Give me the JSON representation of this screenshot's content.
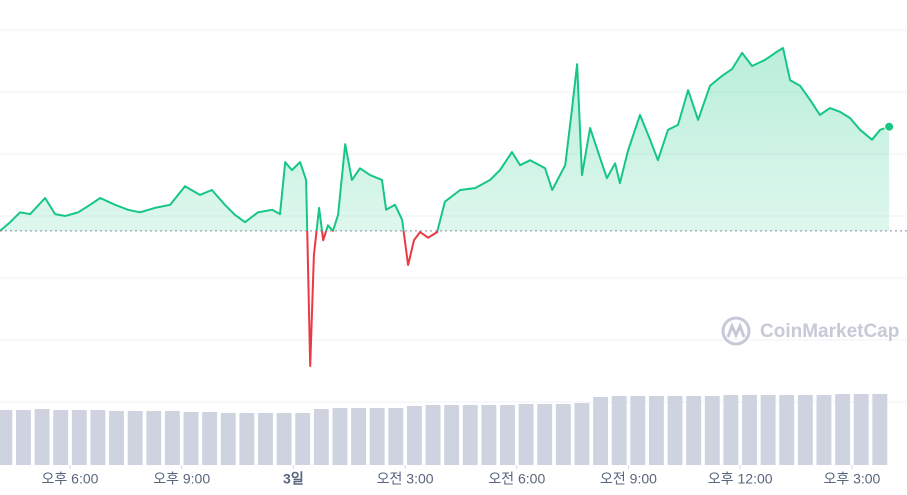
{
  "chart_data": {
    "type": "line",
    "x": [
      16.12,
      16.39,
      16.66,
      16.93,
      17.33,
      17.6,
      17.87,
      18.22,
      18.54,
      18.81,
      19.21,
      19.56,
      19.88,
      20.28,
      20.69,
      21.09,
      21.49,
      21.81,
      22.16,
      22.43,
      22.7,
      23.05,
      23.43,
      23.64,
      23.78,
      23.96,
      24.18,
      24.34,
      24.45,
      24.55,
      24.69,
      24.8,
      24.93,
      25.06,
      25.2,
      25.39,
      25.57,
      25.79,
      26.06,
      26.38,
      26.49,
      26.73,
      26.92,
      27.08,
      27.24,
      27.4,
      27.62,
      27.86,
      28.07,
      28.48,
      28.88,
      29.28,
      29.55,
      29.87,
      30.09,
      30.36,
      30.76,
      30.95,
      31.3,
      31.48,
      31.62,
      31.75,
      31.97,
      32.24,
      32.42,
      32.64,
      32.77,
      32.99,
      33.31,
      33.58,
      33.79,
      34.06,
      34.33,
      34.6,
      34.87,
      35.19,
      35.51,
      35.78,
      36.05,
      36.32,
      36.67,
      36.94,
      37.15,
      37.34,
      37.61,
      37.88,
      38.14,
      38.41,
      38.68,
      38.95,
      39.22,
      39.54,
      39.76,
      40.0
    ],
    "series": [
      {
        "values": [
          2.76,
          2.9,
          3.06,
          3.03,
          3.29,
          3.03,
          3.0,
          3.06,
          3.18,
          3.29,
          3.18,
          3.1,
          3.06,
          3.13,
          3.18,
          3.48,
          3.34,
          3.42,
          3.18,
          3.02,
          2.9,
          3.06,
          3.1,
          3.03,
          3.87,
          3.74,
          3.87,
          3.58,
          0.58,
          2.37,
          3.13,
          2.61,
          2.85,
          2.76,
          3.02,
          4.16,
          3.58,
          3.77,
          3.66,
          3.58,
          3.1,
          3.18,
          2.94,
          2.21,
          2.61,
          2.74,
          2.65,
          2.74,
          3.23,
          3.42,
          3.45,
          3.58,
          3.74,
          4.03,
          3.82,
          3.9,
          3.77,
          3.42,
          3.82,
          4.71,
          5.45,
          3.66,
          4.42,
          3.93,
          3.61,
          3.85,
          3.53,
          4.06,
          4.63,
          4.23,
          3.9,
          4.39,
          4.47,
          5.03,
          4.55,
          5.1,
          5.26,
          5.37,
          5.63,
          5.42,
          5.52,
          5.63,
          5.71,
          5.19,
          5.1,
          4.87,
          4.63,
          4.74,
          4.68,
          4.58,
          4.39,
          4.23,
          4.39,
          4.44
        ],
        "color": "#16c784",
        "down_color": "#ea3943"
      }
    ],
    "reference": 2.76,
    "xlim": [
      16.12,
      40.48
    ],
    "ylim": [
      0,
      6
    ],
    "xticks": [
      {
        "value": 18,
        "label": "오후 6:00"
      },
      {
        "value": 21,
        "label": "오후 9:00"
      },
      {
        "value": 24,
        "label": "3일"
      },
      {
        "value": 27,
        "label": "오전 3:00"
      },
      {
        "value": 30,
        "label": "오전 6:00"
      },
      {
        "value": 33,
        "label": "오전 9:00"
      },
      {
        "value": 36,
        "label": "오후 12:00"
      },
      {
        "value": 39,
        "label": "오후 3:00"
      }
    ],
    "volume": {
      "color": "#cfd3e0",
      "vlim": [
        0,
        80
      ],
      "x": [
        16.25,
        16.75,
        17.25,
        17.75,
        18.25,
        18.75,
        19.25,
        19.75,
        20.25,
        20.75,
        21.25,
        21.75,
        22.25,
        22.75,
        23.25,
        23.75,
        24.25,
        24.75,
        25.25,
        25.75,
        26.25,
        26.75,
        27.25,
        27.75,
        28.25,
        28.75,
        29.25,
        29.75,
        30.25,
        30.75,
        31.25,
        31.75,
        32.25,
        32.75,
        33.25,
        33.75,
        34.25,
        34.75,
        35.25,
        35.75,
        36.25,
        36.75,
        37.25,
        37.75,
        38.25,
        38.75,
        39.25,
        39.75
      ],
      "values": [
        55,
        55,
        56,
        55,
        55,
        55,
        54,
        54,
        54,
        54,
        53,
        53,
        52,
        52,
        52,
        52,
        52,
        56,
        57,
        57,
        57,
        57,
        59,
        60,
        60,
        60,
        60,
        60,
        61,
        61,
        61,
        62,
        68,
        69,
        69,
        69,
        69,
        69,
        69,
        70,
        70,
        70,
        70,
        70,
        70,
        71,
        71,
        71
      ]
    },
    "watermark": "CoinMarketCap"
  }
}
